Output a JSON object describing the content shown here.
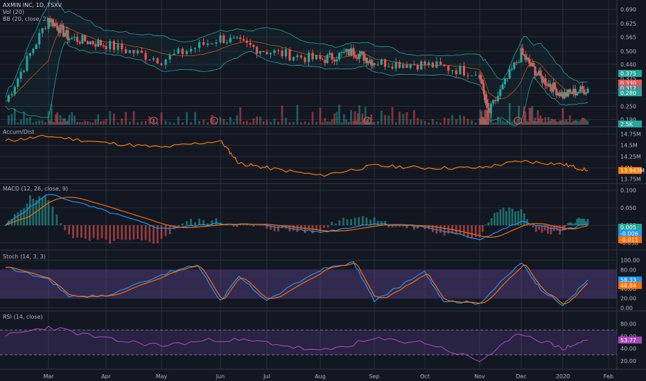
{
  "header": {
    "title": "AXMIN INC, 1D, TSXV",
    "vol_label": "Vol (20)",
    "bb_label": "BB (20, close, 2)"
  },
  "panes": {
    "ad_label": "Accum/Dist",
    "macd_label": "MACD (12, 26, close, 9)",
    "stoch_label": "Stoch (14, 3, 3)",
    "rsi_label": "RSI (14, close)"
  },
  "colors": {
    "background": "#131722",
    "up": "#26a69a",
    "down": "#ef5350",
    "bb": "#26a69a",
    "ad": "#f57c00",
    "macd": "#2196f3",
    "signal": "#ff6d00",
    "stoch_k": "#2196f3",
    "stoch_d": "#ff6d00",
    "rsi": "#ab47bc",
    "band": "#7e57c2",
    "grid": "#2a2e39"
  },
  "chart_data": {
    "type": "candlestick",
    "x_axis_labels": [
      "Mar",
      "Apr",
      "May",
      "Jun",
      "Jul",
      "Aug",
      "Sep",
      "Oct",
      "Nov",
      "Dec",
      "2020",
      "Feb"
    ],
    "panes": [
      {
        "id": "price",
        "y_ticks": [
          "0.690",
          "0.625",
          "0.565",
          "0.500",
          "0.440",
          "0.375",
          "0.310",
          "0.250",
          "0.190"
        ],
        "price_tags": [
          {
            "value": "0.375",
            "color": "#26a69a"
          },
          {
            "value": "0.330",
            "color": "#ef5350"
          },
          {
            "value": "0.312",
            "color": "#787b86"
          },
          {
            "value": "0.280",
            "color": "#26a69a"
          }
        ],
        "volume_tag": "2.5K",
        "earnings_markers": [
          "E",
          "E",
          "E",
          "E"
        ],
        "ohlc_path_approx": [
          {
            "x": "Feb",
            "close": 0.27
          },
          {
            "x": "Mar",
            "close": 0.65
          },
          {
            "x": "Mar-mid",
            "close": 0.56
          },
          {
            "x": "Apr",
            "close": 0.53
          },
          {
            "x": "May",
            "close": 0.46
          },
          {
            "x": "Jun",
            "close": 0.56
          },
          {
            "x": "Jul",
            "close": 0.5
          },
          {
            "x": "Aug",
            "close": 0.46
          },
          {
            "x": "Aug-late",
            "close": 0.5
          },
          {
            "x": "Sep",
            "close": 0.45
          },
          {
            "x": "Oct",
            "close": 0.44
          },
          {
            "x": "Nov",
            "close": 0.4
          },
          {
            "x": "Nov-mid",
            "close": 0.22
          },
          {
            "x": "Dec",
            "close": 0.49
          },
          {
            "x": "Dec-mid",
            "close": 0.38
          },
          {
            "x": "2020",
            "close": 0.3
          },
          {
            "x": "Jan-mid",
            "close": 0.33
          }
        ]
      },
      {
        "id": "accum_dist",
        "y_ticks": [
          "14.75M",
          "14.5M",
          "14.25M",
          "14M",
          "13.75M"
        ],
        "last_tag": "13.943M",
        "series_approx": [
          {
            "x": "Feb",
            "y": 14.6
          },
          {
            "x": "Mar",
            "y": 14.7
          },
          {
            "x": "Apr",
            "y": 14.55
          },
          {
            "x": "May",
            "y": 14.45
          },
          {
            "x": "Jun",
            "y": 14.6
          },
          {
            "x": "Jun-mid",
            "y": 14.1
          },
          {
            "x": "Jul",
            "y": 14.0
          },
          {
            "x": "Aug",
            "y": 13.83
          },
          {
            "x": "Sep",
            "y": 14.05
          },
          {
            "x": "Oct",
            "y": 14.0
          },
          {
            "x": "Nov",
            "y": 14.0
          },
          {
            "x": "Dec",
            "y": 14.15
          },
          {
            "x": "2020",
            "y": 14.08
          },
          {
            "x": "Jan-mid",
            "y": 13.943
          }
        ]
      },
      {
        "id": "macd",
        "y_ticks": [
          "0.100",
          "0.050",
          "0.000",
          "-0.050"
        ],
        "tags": [
          "0.005",
          "-0.006",
          "-0.011"
        ],
        "macd_approx": [
          {
            "x": "Feb",
            "y": 0.0
          },
          {
            "x": "Mar",
            "y": 0.09
          },
          {
            "x": "Apr",
            "y": 0.04
          },
          {
            "x": "May",
            "y": -0.01
          },
          {
            "x": "Jun",
            "y": 0.005
          },
          {
            "x": "Jul",
            "y": 0.0
          },
          {
            "x": "Aug",
            "y": -0.02
          },
          {
            "x": "Sep",
            "y": 0.005
          },
          {
            "x": "Oct",
            "y": -0.005
          },
          {
            "x": "Nov",
            "y": -0.04
          },
          {
            "x": "Dec",
            "y": 0.01
          },
          {
            "x": "2020",
            "y": -0.015
          },
          {
            "x": "Jan-mid",
            "y": 0.005
          }
        ]
      },
      {
        "id": "stoch",
        "y_ticks": [
          "100.00",
          "80.00",
          "60.00",
          "40.00",
          "20.00",
          "0.00"
        ],
        "tags": [
          "58.33",
          "46.84"
        ],
        "bands": [
          20,
          80
        ],
        "k_approx": [
          {
            "x": "Feb",
            "y": 85
          },
          {
            "x": "Mar",
            "y": 60
          },
          {
            "x": "Mar-mid",
            "y": 25
          },
          {
            "x": "Apr",
            "y": 25
          },
          {
            "x": "May",
            "y": 70
          },
          {
            "x": "May-mid",
            "y": 90
          },
          {
            "x": "Jun",
            "y": 15
          },
          {
            "x": "Jun-mid",
            "y": 65
          },
          {
            "x": "Jul",
            "y": 15
          },
          {
            "x": "Aug",
            "y": 80
          },
          {
            "x": "Aug-late",
            "y": 95
          },
          {
            "x": "Sep",
            "y": 15
          },
          {
            "x": "Oct",
            "y": 75
          },
          {
            "x": "Oct-mid",
            "y": 15
          },
          {
            "x": "Nov",
            "y": 10
          },
          {
            "x": "Dec",
            "y": 95
          },
          {
            "x": "Dec-mid",
            "y": 40
          },
          {
            "x": "2020",
            "y": 5
          },
          {
            "x": "Jan-mid",
            "y": 58.33
          }
        ]
      },
      {
        "id": "rsi",
        "y_ticks": [
          "80.00",
          "60.00",
          "40.00",
          "20.00"
        ],
        "tags": [
          "53.77"
        ],
        "bands": [
          30,
          70
        ],
        "series_approx": [
          {
            "x": "Feb",
            "y": 60
          },
          {
            "x": "Mar",
            "y": 75
          },
          {
            "x": "Apr",
            "y": 55
          },
          {
            "x": "May",
            "y": 45
          },
          {
            "x": "Jun",
            "y": 55
          },
          {
            "x": "Jul",
            "y": 50
          },
          {
            "x": "Aug",
            "y": 35
          },
          {
            "x": "Sep",
            "y": 55
          },
          {
            "x": "Oct",
            "y": 50
          },
          {
            "x": "Nov",
            "y": 20
          },
          {
            "x": "Dec",
            "y": 65
          },
          {
            "x": "2020",
            "y": 40
          },
          {
            "x": "Jan-mid",
            "y": 53.77
          }
        ]
      }
    ]
  }
}
